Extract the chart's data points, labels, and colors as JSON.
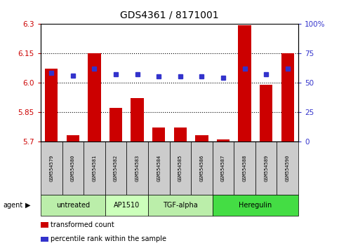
{
  "title": "GDS4361 / 8171001",
  "samples": [
    "GSM554579",
    "GSM554580",
    "GSM554581",
    "GSM554582",
    "GSM554583",
    "GSM554584",
    "GSM554585",
    "GSM554586",
    "GSM554587",
    "GSM554588",
    "GSM554589",
    "GSM554590"
  ],
  "red_values": [
    6.07,
    5.73,
    6.15,
    5.87,
    5.92,
    5.77,
    5.77,
    5.73,
    5.71,
    6.29,
    5.99,
    6.15
  ],
  "blue_values": [
    58,
    56,
    62,
    57,
    57,
    55,
    55,
    55,
    54,
    62,
    57,
    62
  ],
  "ylim_left": [
    5.7,
    6.3
  ],
  "ylim_right": [
    0,
    100
  ],
  "yticks_left": [
    5.7,
    5.85,
    6.0,
    6.15,
    6.3
  ],
  "yticks_right": [
    0,
    25,
    50,
    75,
    100
  ],
  "ytick_labels_right": [
    "0",
    "25",
    "50",
    "75",
    "100%"
  ],
  "hlines": [
    5.85,
    6.0,
    6.15
  ],
  "bar_color": "#cc0000",
  "dot_color": "#3333cc",
  "groups": [
    {
      "label": "untreated",
      "start": 0,
      "end": 3,
      "color": "#bbeeaa"
    },
    {
      "label": "AP1510",
      "start": 3,
      "end": 5,
      "color": "#ccffbb"
    },
    {
      "label": "TGF-alpha",
      "start": 5,
      "end": 8,
      "color": "#bbeeaa"
    },
    {
      "label": "Heregulin",
      "start": 8,
      "end": 12,
      "color": "#44dd44"
    }
  ],
  "legend": [
    {
      "label": "transformed count",
      "color": "#cc0000"
    },
    {
      "label": "percentile rank within the sample",
      "color": "#3333cc"
    }
  ],
  "bar_width": 0.6,
  "title_fontsize": 10,
  "sample_box_color": "#cccccc",
  "sample_text_fontsize": 5,
  "group_text_fontsize": 7
}
